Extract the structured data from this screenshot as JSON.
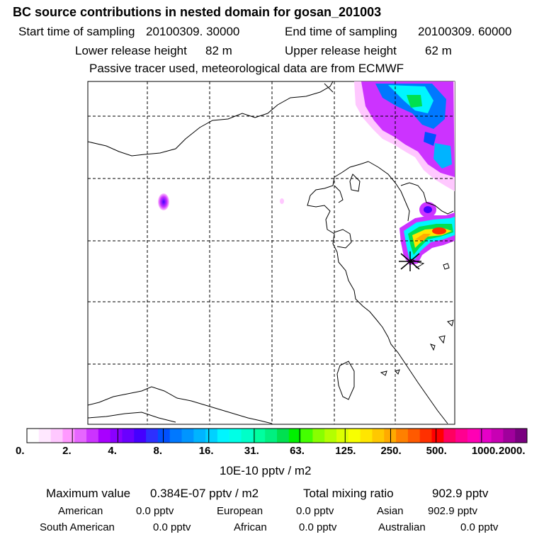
{
  "header": {
    "title": "BC  source contributions in nested domain for gosan_201003",
    "start_label": "Start time of sampling",
    "start_value": "20100309. 30000",
    "end_label": "End time of sampling",
    "end_value": "20100309. 60000",
    "lower_label": "Lower release height",
    "lower_value": "82 m",
    "upper_label": "Upper release height",
    "upper_value": "62 m",
    "note": "Passive tracer used, meteorological data are from ECMWF"
  },
  "colorbar": {
    "unit": "10E-10 pptv / m2",
    "ticks": [
      "0.",
      "2.",
      "4.",
      "8.",
      "16.",
      "31.",
      "63.",
      "125.",
      "250.",
      "500.",
      "1000.",
      "2000."
    ],
    "colors": [
      "#ffffff",
      "#ffe8ff",
      "#ffc8ff",
      "#ff99ff",
      "#e666ff",
      "#cc33ff",
      "#a800ff",
      "#8a00ff",
      "#6a00ff",
      "#4400ff",
      "#2d30ff",
      "#0050ff",
      "#0078ff",
      "#0095ff",
      "#00b4ff",
      "#00d2ff",
      "#00f5ff",
      "#00ffe6",
      "#00ffc8",
      "#00ff9f",
      "#00f080",
      "#00e050",
      "#00f000",
      "#44ff00",
      "#88ff00",
      "#b4ff00",
      "#dcff00",
      "#f8ff00",
      "#ffe600",
      "#ffc800",
      "#ffaa00",
      "#ff8000",
      "#ff5a00",
      "#ff3000",
      "#ff0000",
      "#ff0060",
      "#ff0090",
      "#ff00b4",
      "#e600c8",
      "#c800b4",
      "#a0009c",
      "#7a0080"
    ]
  },
  "stats": {
    "max_label": "Maximum value",
    "max_value": "0.384E-07 pptv / m2",
    "total_label": "Total mixing ratio",
    "total_value": "902.9 pptv",
    "regions": [
      {
        "name": "American",
        "value": "0.0 pptv"
      },
      {
        "name": "European",
        "value": "0.0 pptv"
      },
      {
        "name": "Asian",
        "value": "902.9 pptv"
      },
      {
        "name": "South American",
        "value": "0.0 pptv"
      },
      {
        "name": "African",
        "value": "0.0 pptv"
      },
      {
        "name": "Australian",
        "value": "0.0 pptv"
      }
    ]
  },
  "map": {
    "receptor": "gosan",
    "plume_colors": [
      "#a000ff",
      "#00ffe6",
      "#00e050",
      "#ffe600",
      "#ff3000"
    ]
  }
}
